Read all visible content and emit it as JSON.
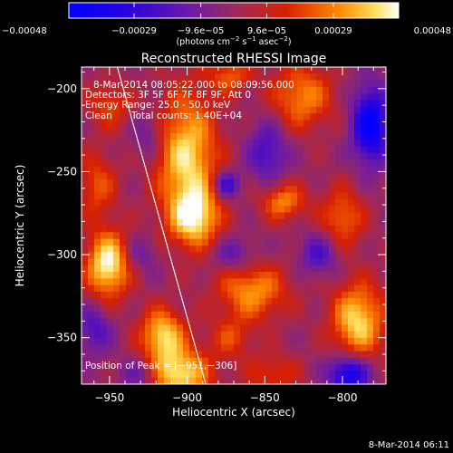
{
  "colorbar": {
    "tick_values": [
      -0.00048,
      -0.00029,
      -9.6e-05,
      9.6e-05,
      0.00029,
      0.00048
    ],
    "tick_labels": [
      "−0.00048",
      "−0.00029",
      "−9.6e−05",
      "9.6e−05",
      "0.00029",
      "0.00048"
    ],
    "range": [
      -0.00048,
      0.00048
    ],
    "units_prefix": "(photons cm",
    "units_exp1": "−2",
    "units_mid1": " s",
    "units_exp2": "−1",
    "units_mid2": " asec",
    "units_exp3": "−2",
    "units_suffix": ")"
  },
  "chart_data": {
    "type": "heatmap",
    "title": "Reconstructed RHESSI Image",
    "xlabel": "Heliocentric X (arcsec)",
    "ylabel": "Heliocentric Y (arcsec)",
    "xlim": [
      -968,
      -772
    ],
    "ylim": [
      -378,
      -187
    ],
    "x_ticks": [
      -950,
      -900,
      -850,
      -800
    ],
    "x_tick_labels": [
      "−950",
      "−900",
      "−850",
      "−800"
    ],
    "y_ticks": [
      -200,
      -250,
      -300,
      -350
    ],
    "y_tick_labels": [
      "−200",
      "−250",
      "−300",
      "−350"
    ],
    "color_scale": "rhessi-blue-purple-red-yellow-white",
    "sources": [
      {
        "x": -900,
        "y": -242,
        "sx": 14,
        "sy": 28,
        "amp": 0.00042
      },
      {
        "x": -895,
        "y": -278,
        "sx": 11,
        "sy": 12,
        "amp": 0.00036
      },
      {
        "x": -951,
        "y": -306,
        "sx": 10,
        "sy": 14,
        "amp": 0.00048
      },
      {
        "x": -905,
        "y": -372,
        "sx": 14,
        "sy": 11,
        "amp": 0.00044
      },
      {
        "x": -916,
        "y": -348,
        "sx": 10,
        "sy": 11,
        "amp": 0.0004
      },
      {
        "x": -858,
        "y": -322,
        "sx": 16,
        "sy": 12,
        "amp": 0.00032
      },
      {
        "x": -790,
        "y": -340,
        "sx": 12,
        "sy": 16,
        "amp": 0.00042
      },
      {
        "x": -838,
        "y": -268,
        "sx": 10,
        "sy": 8,
        "amp": 0.0003
      },
      {
        "x": -826,
        "y": -205,
        "sx": 14,
        "sy": 14,
        "amp": 0.0003
      },
      {
        "x": -800,
        "y": -278,
        "sx": 10,
        "sy": 13,
        "amp": 0.00026
      },
      {
        "x": -958,
        "y": -258,
        "sx": 9,
        "sy": 14,
        "amp": 0.00022
      },
      {
        "x": -950,
        "y": -210,
        "sx": 10,
        "sy": 10,
        "amp": 0.0002
      },
      {
        "x": -872,
        "y": -192,
        "sx": 10,
        "sy": 8,
        "amp": 0.00022
      },
      {
        "x": -872,
        "y": -350,
        "sx": 10,
        "sy": 9,
        "amp": 0.00018
      },
      {
        "x": -845,
        "y": -372,
        "sx": 12,
        "sy": 9,
        "amp": 0.00018
      },
      {
        "x": -875,
        "y": -258,
        "sx": 6,
        "sy": 6,
        "amp": -0.0003
      },
      {
        "x": -848,
        "y": -238,
        "sx": 9,
        "sy": 13,
        "amp": -0.00024
      },
      {
        "x": -782,
        "y": -222,
        "sx": 8,
        "sy": 16,
        "amp": -0.00048
      },
      {
        "x": -796,
        "y": -372,
        "sx": 9,
        "sy": 8,
        "amp": -0.00044
      },
      {
        "x": -930,
        "y": -372,
        "sx": 9,
        "sy": 7,
        "amp": -0.00018
      },
      {
        "x": -815,
        "y": -300,
        "sx": 9,
        "sy": 9,
        "amp": -0.00022
      },
      {
        "x": -960,
        "y": -345,
        "sx": 8,
        "sy": 10,
        "amp": -0.00022
      },
      {
        "x": -925,
        "y": -228,
        "sx": 7,
        "sy": 10,
        "amp": -0.00016
      },
      {
        "x": -870,
        "y": -300,
        "sx": 10,
        "sy": 7,
        "amp": -0.00018
      },
      {
        "x": -930,
        "y": -300,
        "sx": 8,
        "sy": 8,
        "amp": -0.00014
      }
    ],
    "limb_line": [
      [
        -945,
        -187
      ],
      [
        -888,
        -378
      ]
    ],
    "annotations": {
      "time_range": "8-Mar-2014 08:05:22.000 to 08:09:56.000",
      "detectors": "Detectors: 3F 5F 6F 7F 8F 9F, Att 0",
      "energy_range": "Energy Range: 25.0 - 50.0 keV",
      "clean": "Clean",
      "total_counts": "Total counts: 1.40E+04",
      "peak_position": "Position of Peak = [−951,−306]"
    }
  },
  "footer": {
    "timestamp": "8-Mar-2014 06:11"
  }
}
